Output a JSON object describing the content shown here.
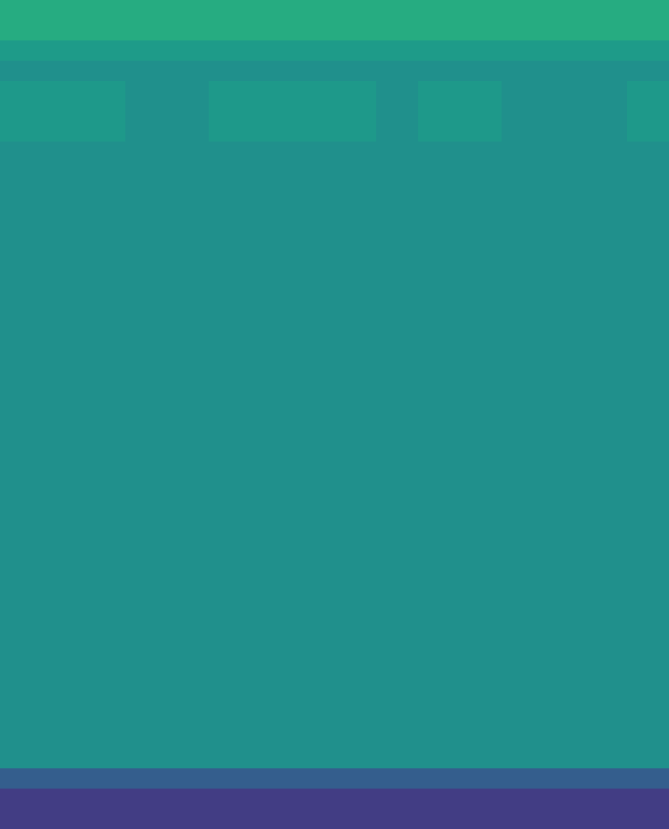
{
  "chart_data": {
    "type": "heatmap",
    "tick_labels": false,
    "color": "viridis",
    "color_range": [
      0,
      1
    ],
    "cells": [
      [
        0.62,
        0.62,
        0.62,
        0.62,
        0.62,
        0.62,
        0.62,
        0.62,
        0.62,
        0.62,
        0.62,
        0.62,
        0.62,
        0.62,
        0.62,
        0.62
      ],
      [
        0.62,
        0.62,
        0.62,
        0.62,
        0.62,
        0.62,
        0.62,
        0.62,
        0.62,
        0.62,
        0.62,
        0.62,
        0.62,
        0.62,
        0.62,
        0.62
      ],
      [
        0.55,
        0.55,
        0.55,
        0.55,
        0.55,
        0.55,
        0.55,
        0.55,
        0.55,
        0.55,
        0.55,
        0.55,
        0.55,
        0.55,
        0.55,
        0.55
      ],
      [
        0.5,
        0.5,
        0.5,
        0.5,
        0.5,
        0.5,
        0.5,
        0.5,
        0.5,
        0.5,
        0.5,
        0.5,
        0.5,
        0.5,
        0.5,
        0.5
      ],
      [
        0.54,
        0.54,
        0.54,
        0.5,
        0.5,
        0.54,
        0.54,
        0.54,
        0.54,
        0.5,
        0.54,
        0.54,
        0.5,
        0.5,
        0.5,
        0.54
      ],
      [
        0.54,
        0.54,
        0.54,
        0.5,
        0.5,
        0.54,
        0.54,
        0.54,
        0.54,
        0.5,
        0.54,
        0.54,
        0.5,
        0.5,
        0.5,
        0.54
      ],
      [
        0.54,
        0.54,
        0.54,
        0.5,
        0.5,
        0.54,
        0.54,
        0.54,
        0.54,
        0.5,
        0.54,
        0.54,
        0.5,
        0.5,
        0.5,
        0.54
      ],
      [
        0.5,
        0.5,
        0.5,
        0.5,
        0.5,
        0.5,
        0.5,
        0.5,
        0.5,
        0.5,
        0.5,
        0.5,
        0.5,
        0.5,
        0.5,
        0.5
      ],
      [
        0.5,
        0.5,
        0.5,
        0.5,
        0.5,
        0.5,
        0.5,
        0.5,
        0.5,
        0.5,
        0.5,
        0.5,
        0.5,
        0.5,
        0.5,
        0.5
      ],
      [
        0.5,
        0.5,
        0.5,
        0.5,
        0.5,
        0.5,
        0.5,
        0.5,
        0.5,
        0.5,
        0.5,
        0.5,
        0.5,
        0.5,
        0.5,
        0.5
      ],
      [
        0.5,
        0.5,
        0.5,
        0.5,
        0.5,
        0.5,
        0.5,
        0.5,
        0.5,
        0.5,
        0.5,
        0.5,
        0.5,
        0.5,
        0.5,
        0.5
      ],
      [
        0.5,
        0.5,
        0.5,
        0.5,
        0.5,
        0.5,
        0.5,
        0.5,
        0.5,
        0.5,
        0.5,
        0.5,
        0.5,
        0.5,
        0.5,
        0.5
      ],
      [
        0.5,
        0.5,
        0.5,
        0.5,
        0.5,
        0.5,
        0.5,
        0.5,
        0.5,
        0.5,
        0.5,
        0.5,
        0.5,
        0.5,
        0.5,
        0.5
      ],
      [
        0.5,
        0.5,
        0.5,
        0.5,
        0.5,
        0.5,
        0.5,
        0.5,
        0.5,
        0.5,
        0.5,
        0.5,
        0.5,
        0.5,
        0.5,
        0.5
      ],
      [
        0.5,
        0.5,
        0.5,
        0.5,
        0.5,
        0.5,
        0.5,
        0.5,
        0.5,
        0.5,
        0.5,
        0.5,
        0.5,
        0.5,
        0.5,
        0.5
      ],
      [
        0.5,
        0.5,
        0.5,
        0.5,
        0.5,
        0.5,
        0.5,
        0.5,
        0.5,
        0.5,
        0.5,
        0.5,
        0.5,
        0.5,
        0.5,
        0.5
      ],
      [
        0.5,
        0.5,
        0.5,
        0.5,
        0.5,
        0.5,
        0.5,
        0.5,
        0.5,
        0.5,
        0.5,
        0.5,
        0.5,
        0.5,
        0.5,
        0.5
      ],
      [
        0.5,
        0.5,
        0.5,
        0.5,
        0.5,
        0.5,
        0.5,
        0.5,
        0.5,
        0.5,
        0.5,
        0.5,
        0.5,
        0.5,
        0.5,
        0.5
      ],
      [
        0.5,
        0.5,
        0.5,
        0.5,
        0.5,
        0.5,
        0.5,
        0.5,
        0.5,
        0.5,
        0.5,
        0.5,
        0.5,
        0.5,
        0.5,
        0.5
      ],
      [
        0.5,
        0.5,
        0.5,
        0.5,
        0.5,
        0.5,
        0.5,
        0.5,
        0.5,
        0.5,
        0.5,
        0.5,
        0.5,
        0.5,
        0.5,
        0.5
      ],
      [
        0.5,
        0.5,
        0.5,
        0.5,
        0.5,
        0.5,
        0.5,
        0.5,
        0.5,
        0.5,
        0.5,
        0.5,
        0.5,
        0.5,
        0.5,
        0.5
      ],
      [
        0.5,
        0.5,
        0.5,
        0.5,
        0.5,
        0.5,
        0.5,
        0.5,
        0.5,
        0.5,
        0.5,
        0.5,
        0.5,
        0.5,
        0.5,
        0.5
      ],
      [
        0.5,
        0.5,
        0.5,
        0.5,
        0.5,
        0.5,
        0.5,
        0.5,
        0.5,
        0.5,
        0.5,
        0.5,
        0.5,
        0.5,
        0.5,
        0.5
      ],
      [
        0.5,
        0.5,
        0.5,
        0.5,
        0.5,
        0.5,
        0.5,
        0.5,
        0.5,
        0.5,
        0.5,
        0.5,
        0.5,
        0.5,
        0.5,
        0.5
      ],
      [
        0.5,
        0.5,
        0.5,
        0.5,
        0.5,
        0.5,
        0.5,
        0.5,
        0.5,
        0.5,
        0.5,
        0.5,
        0.5,
        0.5,
        0.5,
        0.5
      ],
      [
        0.5,
        0.5,
        0.5,
        0.5,
        0.5,
        0.5,
        0.5,
        0.5,
        0.5,
        0.5,
        0.5,
        0.5,
        0.5,
        0.5,
        0.5,
        0.5
      ],
      [
        0.5,
        0.5,
        0.5,
        0.5,
        0.5,
        0.5,
        0.5,
        0.5,
        0.5,
        0.5,
        0.5,
        0.5,
        0.5,
        0.5,
        0.5,
        0.5
      ],
      [
        0.5,
        0.5,
        0.5,
        0.5,
        0.5,
        0.5,
        0.5,
        0.5,
        0.5,
        0.5,
        0.5,
        0.5,
        0.5,
        0.5,
        0.5,
        0.5
      ],
      [
        0.5,
        0.5,
        0.5,
        0.5,
        0.5,
        0.5,
        0.5,
        0.5,
        0.5,
        0.5,
        0.5,
        0.5,
        0.5,
        0.5,
        0.5,
        0.5
      ],
      [
        0.5,
        0.5,
        0.5,
        0.5,
        0.5,
        0.5,
        0.5,
        0.5,
        0.5,
        0.5,
        0.5,
        0.5,
        0.5,
        0.5,
        0.5,
        0.5
      ],
      [
        0.5,
        0.5,
        0.5,
        0.5,
        0.5,
        0.5,
        0.5,
        0.5,
        0.5,
        0.5,
        0.5,
        0.5,
        0.5,
        0.5,
        0.5,
        0.5
      ],
      [
        0.5,
        0.5,
        0.5,
        0.5,
        0.5,
        0.5,
        0.5,
        0.5,
        0.5,
        0.5,
        0.5,
        0.5,
        0.5,
        0.5,
        0.5,
        0.5
      ],
      [
        0.5,
        0.5,
        0.5,
        0.5,
        0.5,
        0.5,
        0.5,
        0.5,
        0.5,
        0.5,
        0.5,
        0.5,
        0.5,
        0.5,
        0.5,
        0.5
      ],
      [
        0.5,
        0.5,
        0.5,
        0.5,
        0.5,
        0.5,
        0.5,
        0.5,
        0.5,
        0.5,
        0.5,
        0.5,
        0.5,
        0.5,
        0.5,
        0.5
      ],
      [
        0.5,
        0.5,
        0.5,
        0.5,
        0.5,
        0.5,
        0.5,
        0.5,
        0.5,
        0.5,
        0.5,
        0.5,
        0.5,
        0.5,
        0.5,
        0.5
      ],
      [
        0.5,
        0.5,
        0.5,
        0.5,
        0.5,
        0.5,
        0.5,
        0.5,
        0.5,
        0.5,
        0.5,
        0.5,
        0.5,
        0.5,
        0.5,
        0.5
      ],
      [
        0.5,
        0.5,
        0.5,
        0.5,
        0.5,
        0.5,
        0.5,
        0.5,
        0.5,
        0.5,
        0.5,
        0.5,
        0.5,
        0.5,
        0.5,
        0.5
      ],
      [
        0.5,
        0.5,
        0.5,
        0.5,
        0.5,
        0.5,
        0.5,
        0.5,
        0.5,
        0.5,
        0.5,
        0.5,
        0.5,
        0.5,
        0.5,
        0.5
      ],
      [
        0.3,
        0.3,
        0.3,
        0.3,
        0.3,
        0.3,
        0.3,
        0.3,
        0.3,
        0.3,
        0.3,
        0.3,
        0.3,
        0.3,
        0.3,
        0.3
      ],
      [
        0.18,
        0.18,
        0.18,
        0.18,
        0.18,
        0.18,
        0.18,
        0.18,
        0.18,
        0.18,
        0.18,
        0.18,
        0.18,
        0.18,
        0.18,
        0.18
      ],
      [
        0.18,
        0.18,
        0.18,
        0.18,
        0.18,
        0.18,
        0.18,
        0.18,
        0.18,
        0.18,
        0.18,
        0.18,
        0.18,
        0.18,
        0.18,
        0.18
      ]
    ]
  }
}
